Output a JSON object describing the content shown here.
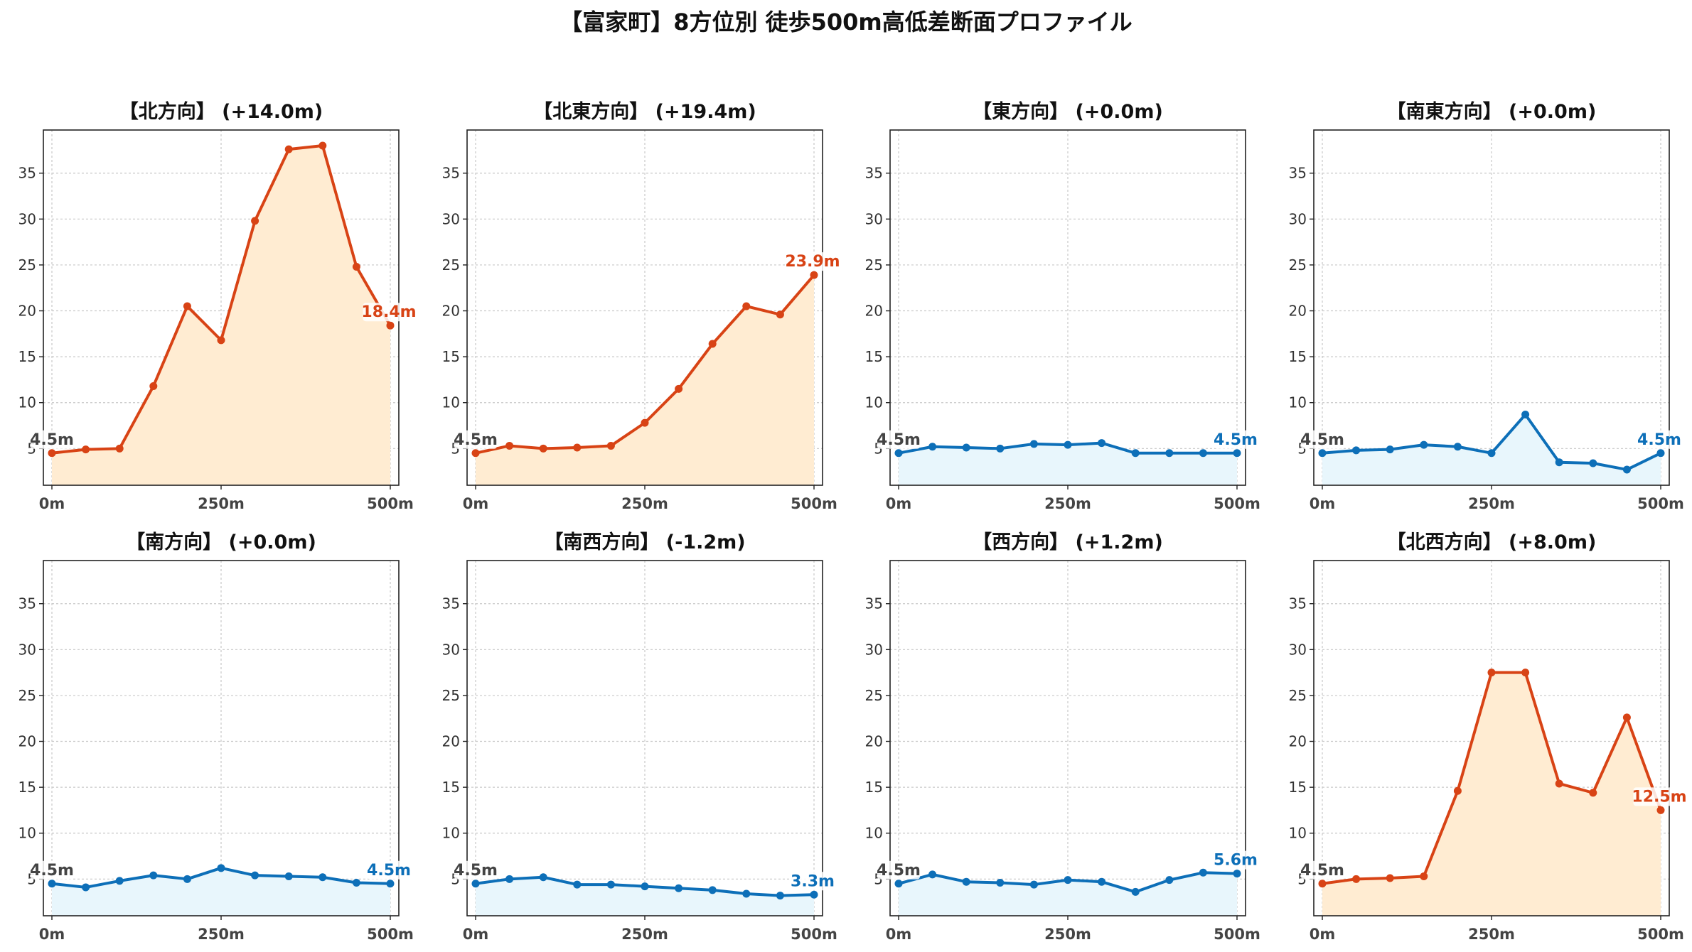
{
  "figure": {
    "title": "【富家町】8方位別 徒歩500m高低差断面プロファイル"
  },
  "colors": {
    "up_line": "#d84315",
    "up_fill": "#ffecd2",
    "flat_line": "#0d6fb8",
    "flat_fill": "#e8f6fc",
    "grid": "#c8c8c8",
    "axis": "#222222"
  },
  "chart_data": [
    {
      "type": "area",
      "title": "【北方向】 (+14.0m)",
      "style": "up",
      "x": [
        0,
        50,
        100,
        150,
        200,
        250,
        300,
        350,
        400,
        450,
        500
      ],
      "values": [
        4.5,
        4.9,
        5.0,
        11.8,
        20.5,
        16.8,
        29.8,
        37.6,
        38.0,
        24.8,
        18.4
      ],
      "start_label": "4.5m",
      "end_label": "18.4m",
      "xticks": [
        "0m",
        "250m",
        "500m"
      ],
      "yticks": [
        5,
        10,
        15,
        20,
        25,
        30,
        35
      ],
      "xlim": [
        0,
        500
      ],
      "ylim": [
        1,
        39.7
      ],
      "grid": true
    },
    {
      "type": "area",
      "title": "【北東方向】 (+19.4m)",
      "style": "up",
      "x": [
        0,
        50,
        100,
        150,
        200,
        250,
        300,
        350,
        400,
        450,
        500
      ],
      "values": [
        4.5,
        5.3,
        5.0,
        5.1,
        5.3,
        7.8,
        11.5,
        16.4,
        20.5,
        19.6,
        23.9
      ],
      "start_label": "4.5m",
      "end_label": "23.9m",
      "xticks": [
        "0m",
        "250m",
        "500m"
      ],
      "yticks": [
        5,
        10,
        15,
        20,
        25,
        30,
        35
      ],
      "xlim": [
        0,
        500
      ],
      "ylim": [
        1,
        39.7
      ],
      "grid": true
    },
    {
      "type": "area",
      "title": "【東方向】 (+0.0m)",
      "style": "flat",
      "x": [
        0,
        50,
        100,
        150,
        200,
        250,
        300,
        350,
        400,
        450,
        500
      ],
      "values": [
        4.5,
        5.2,
        5.1,
        5.0,
        5.5,
        5.4,
        5.6,
        4.5,
        4.5,
        4.5,
        4.5
      ],
      "start_label": "4.5m",
      "end_label": "4.5m",
      "xticks": [
        "0m",
        "250m",
        "500m"
      ],
      "yticks": [
        5,
        10,
        15,
        20,
        25,
        30,
        35
      ],
      "xlim": [
        0,
        500
      ],
      "ylim": [
        1,
        39.7
      ],
      "grid": true
    },
    {
      "type": "area",
      "title": "【南東方向】 (+0.0m)",
      "style": "flat",
      "x": [
        0,
        50,
        100,
        150,
        200,
        250,
        300,
        350,
        400,
        450,
        500
      ],
      "values": [
        4.5,
        4.8,
        4.9,
        5.4,
        5.2,
        4.5,
        8.7,
        3.5,
        3.4,
        2.7,
        4.5
      ],
      "start_label": "4.5m",
      "end_label": "4.5m",
      "xticks": [
        "0m",
        "250m",
        "500m"
      ],
      "yticks": [
        5,
        10,
        15,
        20,
        25,
        30,
        35
      ],
      "xlim": [
        0,
        500
      ],
      "ylim": [
        1,
        39.7
      ],
      "grid": true
    },
    {
      "type": "area",
      "title": "【南方向】 (+0.0m)",
      "style": "flat",
      "x": [
        0,
        50,
        100,
        150,
        200,
        250,
        300,
        350,
        400,
        450,
        500
      ],
      "values": [
        4.5,
        4.1,
        4.8,
        5.4,
        5.0,
        6.2,
        5.4,
        5.3,
        5.2,
        4.6,
        4.5
      ],
      "start_label": "4.5m",
      "end_label": "4.5m",
      "xticks": [
        "0m",
        "250m",
        "500m"
      ],
      "yticks": [
        5,
        10,
        15,
        20,
        25,
        30,
        35
      ],
      "xlim": [
        0,
        500
      ],
      "ylim": [
        1,
        39.7
      ],
      "grid": true
    },
    {
      "type": "area",
      "title": "【南西方向】 (-1.2m)",
      "style": "flat",
      "x": [
        0,
        50,
        100,
        150,
        200,
        250,
        300,
        350,
        400,
        450,
        500
      ],
      "values": [
        4.5,
        5.0,
        5.2,
        4.4,
        4.4,
        4.2,
        4.0,
        3.8,
        3.4,
        3.2,
        3.3
      ],
      "start_label": "4.5m",
      "end_label": "3.3m",
      "xticks": [
        "0m",
        "250m",
        "500m"
      ],
      "yticks": [
        5,
        10,
        15,
        20,
        25,
        30,
        35
      ],
      "xlim": [
        0,
        500
      ],
      "ylim": [
        1,
        39.7
      ],
      "grid": true
    },
    {
      "type": "area",
      "title": "【西方向】 (+1.2m)",
      "style": "flat",
      "x": [
        0,
        50,
        100,
        150,
        200,
        250,
        300,
        350,
        400,
        450,
        500
      ],
      "values": [
        4.5,
        5.5,
        4.7,
        4.6,
        4.4,
        4.9,
        4.7,
        3.6,
        4.9,
        5.7,
        5.6
      ],
      "start_label": "4.5m",
      "end_label": "5.6m",
      "xticks": [
        "0m",
        "250m",
        "500m"
      ],
      "yticks": [
        5,
        10,
        15,
        20,
        25,
        30,
        35
      ],
      "xlim": [
        0,
        500
      ],
      "ylim": [
        1,
        39.7
      ],
      "grid": true
    },
    {
      "type": "area",
      "title": "【北西方向】 (+8.0m)",
      "style": "up",
      "x": [
        0,
        50,
        100,
        150,
        200,
        250,
        300,
        350,
        400,
        450,
        500
      ],
      "values": [
        4.5,
        5.0,
        5.1,
        5.3,
        14.6,
        27.5,
        27.5,
        15.4,
        14.4,
        22.6,
        12.5
      ],
      "start_label": "4.5m",
      "end_label": "12.5m",
      "xticks": [
        "0m",
        "250m",
        "500m"
      ],
      "yticks": [
        5,
        10,
        15,
        20,
        25,
        30,
        35
      ],
      "xlim": [
        0,
        500
      ],
      "ylim": [
        1,
        39.7
      ],
      "grid": true
    }
  ]
}
